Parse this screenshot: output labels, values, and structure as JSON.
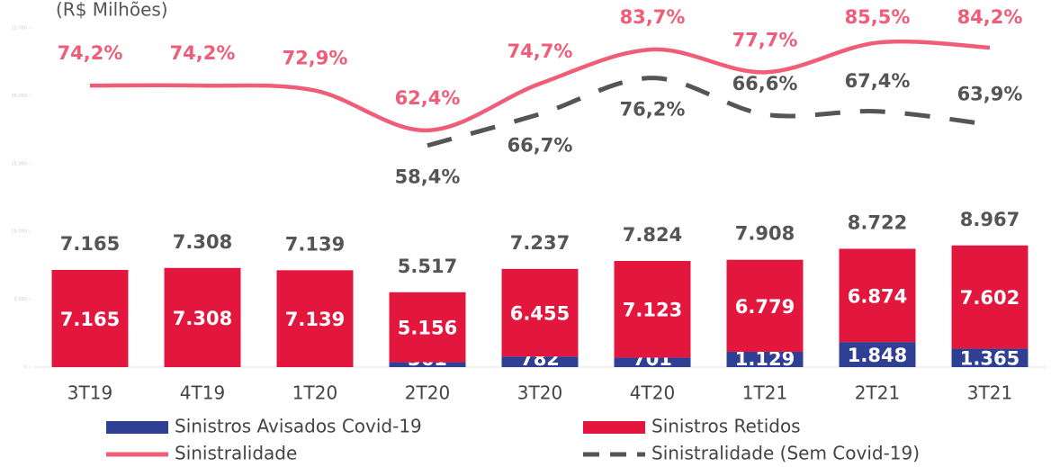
{
  "chart_data": {
    "type": "bar",
    "subtitle": "(R$ Milhões)",
    "categories": [
      "3T19",
      "4T19",
      "1T20",
      "2T20",
      "3T20",
      "4T20",
      "1T21",
      "2T21",
      "3T21"
    ],
    "series": [
      {
        "name": "Sinistros Avisados Covid-19",
        "color": "#2e3f94",
        "stack": true,
        "values": [
          null,
          null,
          null,
          361,
          782,
          701,
          1129,
          1848,
          1365
        ],
        "value_labels": [
          null,
          null,
          null,
          "361",
          "782",
          "701",
          "1.129",
          "1.848",
          "1.365"
        ]
      },
      {
        "name": "Sinistros Retidos",
        "color": "#e3173e",
        "stack": true,
        "values": [
          7165,
          7308,
          7139,
          5156,
          6455,
          7123,
          6779,
          6874,
          7602
        ],
        "value_labels": [
          "7.165",
          "7.308",
          "7.139",
          "5.156",
          "6.455",
          "7.123",
          "6.779",
          "6.874",
          "7.602"
        ]
      },
      {
        "name": "Sinistralidade",
        "type": "line",
        "axis": "y2",
        "color": "#ef5d78",
        "dash": false,
        "values": [
          74.2,
          74.2,
          72.9,
          62.4,
          74.7,
          83.7,
          77.7,
          85.5,
          84.2
        ],
        "value_labels": [
          "74,2%",
          "74,2%",
          "72,9%",
          "62,4%",
          "74,7%",
          "83,7%",
          "77,7%",
          "85,5%",
          "84,2%"
        ]
      },
      {
        "name": "Sinistralidade (Sem Covid-19)",
        "type": "line",
        "axis": "y2",
        "color": "#555555",
        "dash": true,
        "values": [
          null,
          null,
          null,
          58.4,
          66.7,
          76.2,
          66.6,
          67.4,
          63.9
        ],
        "value_labels": [
          null,
          null,
          null,
          "58,4%",
          "66,7%",
          "76,2%",
          "66,6%",
          "67,4%",
          "63,9%"
        ]
      }
    ],
    "total_labels": [
      "7.165",
      "7.308",
      "7.139",
      "5.517",
      "7.237",
      "7.824",
      "7.908",
      "8.722",
      "8.967"
    ],
    "ylim": [
      0,
      25000
    ],
    "yticks": [
      {
        "value": 0,
        "label": "0"
      },
      {
        "value": 5000,
        "label": "5.000"
      },
      {
        "value": 10000,
        "label": "10.000"
      },
      {
        "value": 15000,
        "label": "15.000"
      },
      {
        "value": 20000,
        "label": "20.000"
      },
      {
        "value": 25000,
        "label": "25.000"
      }
    ],
    "y2lim": [
      0,
      89.4
    ]
  }
}
